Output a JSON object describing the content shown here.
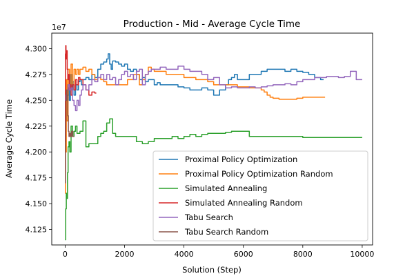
{
  "chart_data": {
    "type": "line",
    "title": "Production - Mid - Average Cycle Time",
    "xlabel": "Solution (Step)",
    "ylabel": "Average Cycle Time",
    "y_offset_label": "1e7",
    "y_scale": 10000000,
    "xlim": [
      -450,
      10350
    ],
    "ylim": [
      41100000,
      43150000
    ],
    "x_ticks": [
      0,
      2000,
      4000,
      6000,
      8000,
      10000
    ],
    "x_tick_labels": [
      "0",
      "2000",
      "4000",
      "6000",
      "8000",
      "10000"
    ],
    "y_ticks": [
      41250000,
      41500000,
      41750000,
      42000000,
      42250000,
      42500000,
      42750000,
      43000000
    ],
    "y_tick_labels": [
      "4.125",
      "4.150",
      "4.175",
      "4.200",
      "4.225",
      "4.250",
      "4.275",
      "4.300"
    ],
    "grid": false,
    "legend_position": "lower right",
    "series": [
      {
        "name": "Proximal Policy Optimization",
        "color": "#1f77b4",
        "x": [
          0,
          20,
          40,
          60,
          80,
          110,
          140,
          180,
          220,
          260,
          300,
          350,
          400,
          450,
          500,
          550,
          600,
          700,
          800,
          900,
          1000,
          1100,
          1200,
          1300,
          1400,
          1450,
          1500,
          1550,
          1600,
          1700,
          1800,
          1900,
          2000,
          2100,
          2200,
          2300,
          2400,
          2500,
          2600,
          2700,
          2800,
          2900,
          3000,
          3100,
          3200,
          3400,
          3600,
          3800,
          4000,
          4200,
          4400,
          4600,
          4800,
          5000,
          5200,
          5400,
          5500,
          5600,
          5700,
          5800,
          6000,
          6200,
          6400,
          6600,
          6800,
          7000,
          7200,
          7400,
          7600,
          7800,
          8000,
          8200,
          8400,
          8600,
          8700
        ],
        "y": [
          42600000,
          42550000,
          42620000,
          42650000,
          42550000,
          42620000,
          42500000,
          42750000,
          42600000,
          42680000,
          42550000,
          42650000,
          42600000,
          42680000,
          42700000,
          42650000,
          42700000,
          42720000,
          42700000,
          42750000,
          42720000,
          42800000,
          42850000,
          42870000,
          42900000,
          42950000,
          42850000,
          42800000,
          42880000,
          42870000,
          42850000,
          42830000,
          42850000,
          42800000,
          42780000,
          42800000,
          42750000,
          42700000,
          42720000,
          42680000,
          42700000,
          42700000,
          42650000,
          42670000,
          42650000,
          42650000,
          42650000,
          42630000,
          42620000,
          42600000,
          42600000,
          42620000,
          42600000,
          42550000,
          42600000,
          42650000,
          42700000,
          42720000,
          42750000,
          42700000,
          42700000,
          42750000,
          42750000,
          42780000,
          42800000,
          42800000,
          42800000,
          42780000,
          42800000,
          42780000,
          42770000,
          42750000,
          42720000,
          42700000,
          42700000
        ]
      },
      {
        "name": "Proximal Policy Optimization Random",
        "color": "#ff7f0e",
        "x": [
          0,
          10,
          20,
          40,
          60,
          100,
          150,
          200,
          250,
          300,
          350,
          400,
          450,
          500,
          600,
          700,
          800,
          900,
          1000,
          1100,
          1200,
          1300,
          1400,
          1500,
          1700,
          1900,
          2100,
          2300,
          2500,
          2600,
          2700,
          2800,
          2900,
          3000,
          3200,
          3400,
          3600,
          3800,
          4000,
          4200,
          4400,
          4600,
          4800,
          5000,
          5200,
          5400,
          5600,
          5800,
          6000,
          6200,
          6400,
          6600,
          6700,
          6800,
          6900,
          7000,
          7200,
          7400,
          7600,
          7800,
          8000,
          8200,
          8400,
          8600,
          8750
        ],
        "y": [
          41600000,
          42500000,
          42000000,
          42700000,
          42300000,
          42800000,
          42600000,
          42850000,
          42650000,
          42800000,
          42750000,
          42800000,
          42750000,
          42800000,
          42820000,
          42780000,
          42800000,
          42750000,
          42700000,
          42720000,
          42700000,
          42680000,
          42650000,
          42650000,
          42650000,
          42650000,
          42700000,
          42750000,
          42650000,
          42700000,
          42750000,
          42820000,
          42800000,
          42780000,
          42780000,
          42750000,
          42750000,
          42750000,
          42720000,
          42720000,
          42700000,
          42700000,
          42680000,
          42650000,
          42650000,
          42650000,
          42650000,
          42630000,
          42630000,
          42620000,
          42620000,
          42600000,
          42580000,
          42550000,
          42530000,
          42520000,
          42510000,
          42510000,
          42510000,
          42520000,
          42530000,
          42530000,
          42530000,
          42530000,
          42530000
        ]
      },
      {
        "name": "Simulated Annealing",
        "color": "#2ca02c",
        "x": [
          0,
          20,
          40,
          60,
          80,
          100,
          130,
          160,
          200,
          250,
          300,
          350,
          400,
          500,
          600,
          700,
          800,
          900,
          1000,
          1100,
          1200,
          1300,
          1400,
          1500,
          1600,
          1700,
          1800,
          1900,
          2000,
          2200,
          2400,
          2600,
          2800,
          3000,
          3200,
          3400,
          3600,
          3800,
          4000,
          4200,
          4400,
          4600,
          4800,
          5000,
          5200,
          5400,
          5600,
          5800,
          6000,
          6200,
          6400,
          6600,
          6800,
          7000,
          7200,
          7400,
          7600,
          7800,
          8000,
          8200,
          8400,
          8600,
          8800,
          9000,
          9200,
          9400,
          9600,
          9800,
          10000
        ],
        "y": [
          41150000,
          41450000,
          41600000,
          41550000,
          41800000,
          42050000,
          42100000,
          42000000,
          42250000,
          42150000,
          42200000,
          42250000,
          42180000,
          42200000,
          42300000,
          42050000,
          42080000,
          42080000,
          42080000,
          42150000,
          42180000,
          42200000,
          42280000,
          42320000,
          42180000,
          42150000,
          42150000,
          42150000,
          42150000,
          42150000,
          42100000,
          42080000,
          42100000,
          42130000,
          42130000,
          42130000,
          42150000,
          42130000,
          42150000,
          42170000,
          42150000,
          42170000,
          42180000,
          42180000,
          42180000,
          42190000,
          42200000,
          42200000,
          42200000,
          42150000,
          42150000,
          42150000,
          42150000,
          42150000,
          42150000,
          42150000,
          42150000,
          42150000,
          42140000,
          42140000,
          42140000,
          42140000,
          42140000,
          42140000,
          42140000,
          42140000,
          42140000,
          42140000,
          42140000
        ]
      },
      {
        "name": "Simulated Annealing Random",
        "color": "#d62728",
        "x": [
          0,
          10,
          20,
          30,
          50,
          70,
          90,
          110,
          140,
          170,
          200,
          250,
          300,
          350,
          400,
          450,
          500,
          600,
          700,
          800,
          900,
          1000,
          1050
        ],
        "y": [
          41800000,
          42950000,
          43030000,
          42900000,
          42980000,
          42800000,
          42700000,
          42750000,
          42600000,
          42650000,
          42550000,
          42650000,
          42600000,
          42700000,
          42650000,
          42720000,
          42700000,
          42650000,
          42600000,
          42550000,
          42580000,
          42570000,
          42570000
        ]
      },
      {
        "name": "Tabu Search",
        "color": "#9467bd",
        "x": [
          0,
          30,
          60,
          100,
          150,
          200,
          250,
          300,
          350,
          400,
          450,
          500,
          550,
          600,
          700,
          800,
          900,
          1000,
          1100,
          1200,
          1300,
          1400,
          1500,
          1600,
          1700,
          1800,
          1900,
          2000,
          2100,
          2200,
          2300,
          2400,
          2500,
          2600,
          2700,
          2800,
          2900,
          3000,
          3200,
          3400,
          3600,
          3800,
          4000,
          4200,
          4400,
          4600,
          4800,
          5000,
          5200,
          5400,
          5600,
          5800,
          6000,
          6200,
          6400,
          6600,
          6800,
          7000,
          7200,
          7400,
          7600,
          7800,
          8000,
          8200,
          8400,
          8600,
          8800,
          9000,
          9200,
          9400,
          9600,
          9800,
          10000
        ],
        "y": [
          42500000,
          42550000,
          42600000,
          42650000,
          42600000,
          42620000,
          42500000,
          42450000,
          42400000,
          42500000,
          42450000,
          42550000,
          42600000,
          42650000,
          42600000,
          42650000,
          42700000,
          42680000,
          42720000,
          42750000,
          42700000,
          42750000,
          42700000,
          42720000,
          42650000,
          42700000,
          42750000,
          42780000,
          42730000,
          42750000,
          42700000,
          42780000,
          42800000,
          42650000,
          42750000,
          42780000,
          42800000,
          42800000,
          42820000,
          42800000,
          42800000,
          42830000,
          42800000,
          42780000,
          42780000,
          42750000,
          42700000,
          42720000,
          42650000,
          42620000,
          42630000,
          42620000,
          42620000,
          42630000,
          42620000,
          42630000,
          42640000,
          42650000,
          42650000,
          42660000,
          42650000,
          42680000,
          42700000,
          42700000,
          42720000,
          42720000,
          42730000,
          42730000,
          42720000,
          42730000,
          42780000,
          42700000,
          42700000
        ]
      },
      {
        "name": "Tabu Search Random",
        "color": "#8c564b",
        "x": [
          0,
          10,
          20,
          30,
          50,
          70,
          90,
          110,
          130,
          160,
          190,
          220,
          260,
          300
        ],
        "y": [
          41700000,
          42100000,
          42300000,
          42500000,
          42600000,
          42550000,
          42350000,
          42200000,
          42150000,
          42180000,
          42150000,
          42200000,
          42150000,
          42150000
        ]
      }
    ]
  }
}
